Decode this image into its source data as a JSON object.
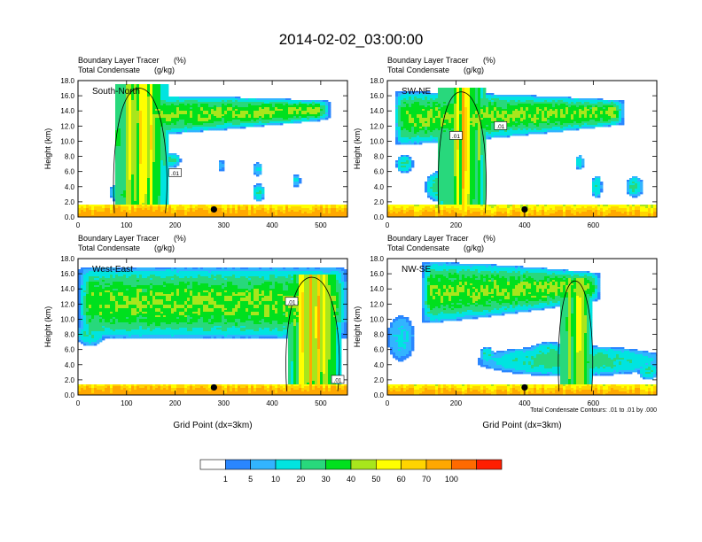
{
  "title": "2014-02-02_03:00:00",
  "chart_data": [
    {
      "type": "heatmap",
      "name": "south-north",
      "panel_label": "South-North",
      "title_line1": "Boundary Layer Tracer",
      "units_line1": "(%)",
      "title_line2": "Total Condensate",
      "units_line2": "(g/kg)",
      "ylabel": "Height (km)",
      "xlabel": "",
      "xlim": [
        0,
        555
      ],
      "ylim": [
        0,
        18
      ],
      "xticks": [
        "0",
        "100",
        "200",
        "300",
        "400",
        "500"
      ],
      "xtick_values": [
        0,
        100,
        200,
        300,
        400,
        500
      ],
      "yticks": [
        "0.0",
        "2.0",
        "4.0",
        "6.0",
        "8.0",
        "10.0",
        "12.0",
        "14.0",
        "16.0",
        "18.0"
      ],
      "ytick_values": [
        0,
        2,
        4,
        6,
        8,
        10,
        12,
        14,
        16,
        18
      ],
      "marker": [
        280,
        1
      ],
      "contour_labels": [
        {
          "text": ".01",
          "x": 200,
          "y": 5.8
        }
      ],
      "surface": {
        "base": 100,
        "top": 1.6
      },
      "anvil": {
        "x0": 85,
        "x1": 520,
        "base": 10.6,
        "top": 16.0,
        "tapered": true
      },
      "core": {
        "x0": 75,
        "x1": 185,
        "top": 17.5,
        "peak": 75
      },
      "blobs": [
        {
          "x": 100,
          "y": 3.2,
          "w": 35,
          "h": 1.6,
          "v": 30
        },
        {
          "x": 372,
          "y": 3.2,
          "w": 12,
          "h": 1.2,
          "v": 20
        },
        {
          "x": 370,
          "y": 6.3,
          "w": 10,
          "h": 0.9,
          "v": 10
        },
        {
          "x": 295,
          "y": 6.8,
          "w": 6,
          "h": 0.8,
          "v": 5
        },
        {
          "x": 190,
          "y": 7.5,
          "w": 22,
          "h": 1.0,
          "v": 20
        },
        {
          "x": 450,
          "y": 4.8,
          "w": 8,
          "h": 0.8,
          "v": 10
        }
      ]
    },
    {
      "type": "heatmap",
      "name": "sw-ne",
      "panel_label": "SW-NE",
      "title_line1": "Boundary Layer Tracer",
      "units_line1": "(%)",
      "title_line2": "Total Condensate",
      "units_line2": "(g/kg)",
      "ylabel": "Height (km)",
      "xlabel": "",
      "xlim": [
        0,
        785
      ],
      "ylim": [
        0,
        18
      ],
      "xticks": [
        "0",
        "200",
        "400",
        "600"
      ],
      "xtick_values": [
        0,
        200,
        400,
        600
      ],
      "yticks": [
        "0.0",
        "2.0",
        "4.0",
        "6.0",
        "8.0",
        "10.0",
        "12.0",
        "14.0",
        "16.0",
        "18.0"
      ],
      "ytick_values": [
        0,
        2,
        4,
        6,
        8,
        10,
        12,
        14,
        16,
        18
      ],
      "marker": [
        400,
        1
      ],
      "contour_labels": [
        {
          "text": ".01",
          "x": 200,
          "y": 10.7
        },
        {
          "text": ".01",
          "x": 330,
          "y": 12.0
        }
      ],
      "surface": {
        "base": 90,
        "top": 1.6
      },
      "anvil": {
        "x0": 20,
        "x1": 690,
        "base": 9.5,
        "top": 16.5,
        "tapered": true
      },
      "core": {
        "x0": 150,
        "x1": 290,
        "top": 17.0,
        "peak": 70
      },
      "blobs": [
        {
          "x": 150,
          "y": 4.0,
          "w": 40,
          "h": 2.0,
          "v": 25
        },
        {
          "x": 610,
          "y": 4.0,
          "w": 15,
          "h": 1.5,
          "v": 20
        },
        {
          "x": 560,
          "y": 7.2,
          "w": 12,
          "h": 1.0,
          "v": 15
        },
        {
          "x": 720,
          "y": 4.0,
          "w": 25,
          "h": 1.4,
          "v": 20
        },
        {
          "x": 50,
          "y": 7.0,
          "w": 25,
          "h": 1.2,
          "v": 20
        }
      ]
    },
    {
      "type": "heatmap",
      "name": "west-east",
      "panel_label": "West-East",
      "title_line1": "Boundary Layer Tracer",
      "units_line1": "(%)",
      "title_line2": "Total Condensate",
      "units_line2": "(g/kg)",
      "ylabel": "Height (km)",
      "xlabel": "Grid Point (dx=3km)",
      "xlim": [
        0,
        555
      ],
      "ylim": [
        0,
        18
      ],
      "xticks": [
        "0",
        "100",
        "200",
        "300",
        "400",
        "500"
      ],
      "xtick_values": [
        0,
        100,
        200,
        300,
        400,
        500
      ],
      "yticks": [
        "0.0",
        "2.0",
        "4.0",
        "6.0",
        "8.0",
        "10.0",
        "12.0",
        "14.0",
        "16.0",
        "18.0"
      ],
      "ytick_values": [
        0,
        2,
        4,
        6,
        8,
        10,
        12,
        14,
        16,
        18
      ],
      "marker": [
        280,
        1
      ],
      "contour_labels": [
        {
          "text": ".01",
          "x": 440,
          "y": 12.3
        },
        {
          "text": ".01",
          "x": 535,
          "y": 2.0
        }
      ],
      "surface": {
        "base": 100,
        "top": 1.5
      },
      "anvil": {
        "x0": 0,
        "x1": 555,
        "base": 7.5,
        "top": 16.8,
        "tapered": false
      },
      "core": {
        "x0": 430,
        "x1": 540,
        "top": 16.0,
        "peak": 80
      },
      "blobs": [
        {
          "x": 25,
          "y": 8.0,
          "w": 30,
          "h": 1.5,
          "v": 20
        },
        {
          "x": 90,
          "y": 10.0,
          "w": 25,
          "h": 1.2,
          "v": 15
        }
      ]
    },
    {
      "type": "heatmap",
      "name": "nw-se",
      "panel_label": "NW-SE",
      "title_line1": "Boundary Layer Tracer",
      "units_line1": "(%)",
      "title_line2": "Total Condensate",
      "units_line2": "(g/kg)",
      "ylabel": "Height (km)",
      "xlabel": "Grid Point (dx=3km)",
      "xlim": [
        0,
        785
      ],
      "ylim": [
        0,
        18
      ],
      "xticks": [
        "0",
        "200",
        "400",
        "600"
      ],
      "xtick_values": [
        0,
        200,
        400,
        600
      ],
      "yticks": [
        "0.0",
        "2.0",
        "4.0",
        "6.0",
        "8.0",
        "10.0",
        "12.0",
        "14.0",
        "16.0",
        "18.0"
      ],
      "ytick_values": [
        0,
        2,
        4,
        6,
        8,
        10,
        12,
        14,
        16,
        18
      ],
      "marker": [
        400,
        1
      ],
      "contour_labels": [],
      "footnote": "Total Condensate Contours: .01 to .01 by .000",
      "surface": {
        "base": 90,
        "top": 1.5
      },
      "anvil": {
        "x0": 100,
        "x1": 620,
        "base": 9.5,
        "top": 17.5,
        "tapered": true
      },
      "core": {
        "x0": 500,
        "x1": 600,
        "top": 15.5,
        "peak": 60
      },
      "blobs": [
        {
          "x": 540,
          "y": 4.5,
          "w": 280,
          "h": 2.0,
          "v": 25
        },
        {
          "x": 470,
          "y": 5.6,
          "w": 60,
          "h": 1.4,
          "v": 20
        },
        {
          "x": 290,
          "y": 5.3,
          "w": 20,
          "h": 1.0,
          "v": 20
        },
        {
          "x": 40,
          "y": 7.5,
          "w": 40,
          "h": 3.0,
          "v": 10
        },
        {
          "x": 760,
          "y": 3.2,
          "w": 30,
          "h": 1.2,
          "v": 20
        }
      ]
    }
  ],
  "colorbar": {
    "levels": [
      "1",
      "5",
      "10",
      "20",
      "30",
      "40",
      "50",
      "60",
      "70",
      "100"
    ],
    "colors": [
      "#ffffff",
      "#2a86ff",
      "#32b4ff",
      "#00e4e0",
      "#28d87c",
      "#00e01e",
      "#a8e61c",
      "#ffff00",
      "#ffd400",
      "#ffa800",
      "#ff6a00",
      "#ff1e00"
    ]
  }
}
